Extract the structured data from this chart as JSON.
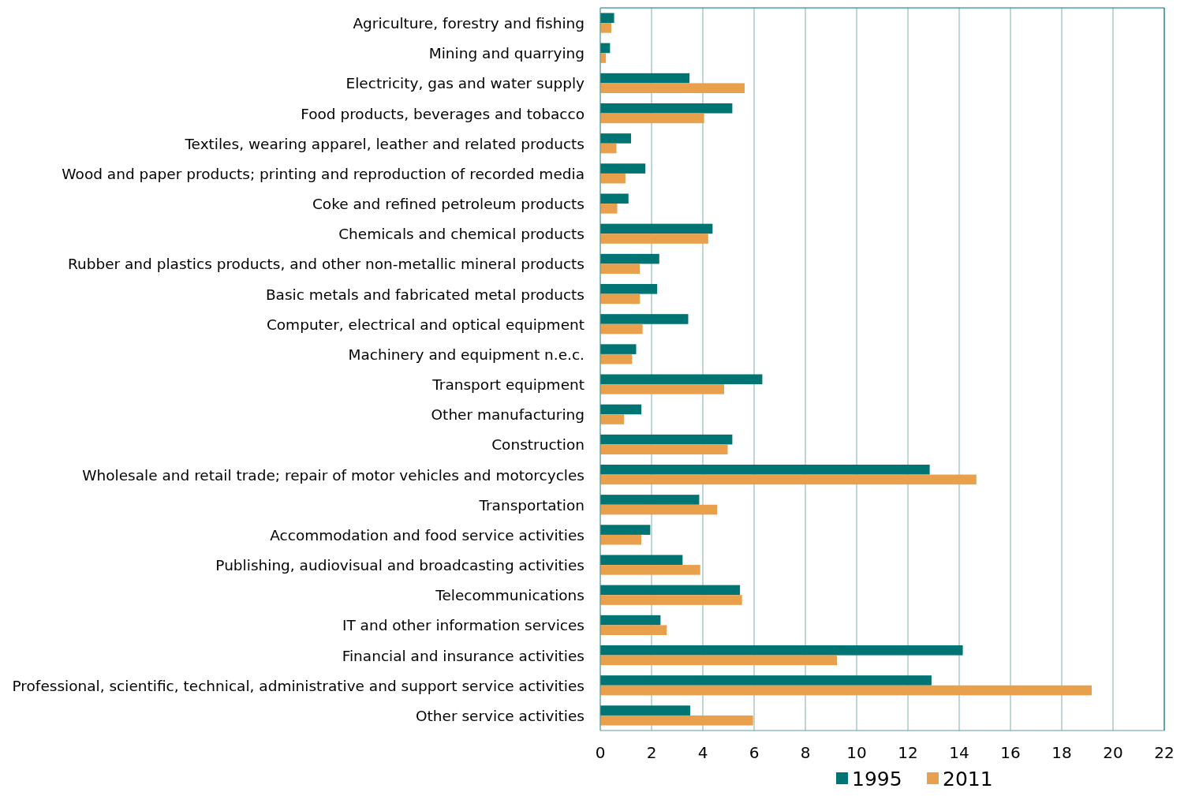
{
  "chart_data": {
    "type": "bar",
    "orientation": "horizontal",
    "categories": [
      "Agriculture, forestry and fishing",
      "Mining and quarrying",
      "Electricity, gas and water supply",
      "Food products, beverages and tobacco",
      "Textiles, wearing apparel, leather and related products",
      "Wood and paper products; printing and reproduction of recorded media",
      "Coke and refined petroleum products",
      "Chemicals and chemical products",
      "Rubber and plastics products, and other non-metallic mineral products",
      "Basic metals and fabricated metal products",
      "Computer, electrical and optical equipment",
      "Machinery and equipment n.e.c.",
      "Transport equipment",
      "Other manufacturing",
      "Construction",
      "Wholesale and retail trade; repair of motor vehicles and motorcycles",
      "Transportation",
      "Accommodation and food service activities",
      "Publishing, audiovisual and broadcasting activities",
      "Telecommunications",
      "IT and other information services",
      "Financial and insurance activities",
      "Professional, scientific, technical, administrative and support service activities",
      "Other service activities"
    ],
    "series": [
      {
        "name": "1995",
        "color": "#007373",
        "values": [
          0.54,
          0.38,
          3.48,
          5.15,
          1.2,
          1.76,
          1.1,
          4.38,
          2.3,
          2.22,
          3.43,
          1.4,
          6.32,
          1.6,
          5.15,
          12.85,
          3.86,
          1.95,
          3.21,
          5.45,
          2.35,
          14.14,
          12.92,
          3.51
        ]
      },
      {
        "name": "2011",
        "color": "#e8a04d",
        "values": [
          0.43,
          0.22,
          5.63,
          4.05,
          0.63,
          0.98,
          0.66,
          4.21,
          1.54,
          1.55,
          1.65,
          1.24,
          4.83,
          0.93,
          4.97,
          14.67,
          4.56,
          1.6,
          3.9,
          5.53,
          2.59,
          9.23,
          19.17,
          5.96
        ]
      }
    ],
    "xlim": [
      0,
      22
    ],
    "xticks": [
      0,
      2,
      4,
      6,
      8,
      10,
      12,
      14,
      16,
      18,
      20,
      22
    ],
    "grid": "x",
    "legend": "bottom"
  }
}
